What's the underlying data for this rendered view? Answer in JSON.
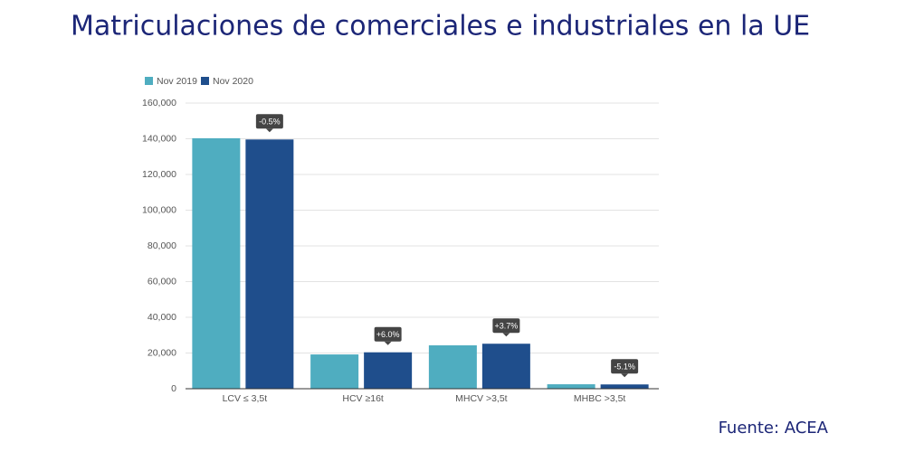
{
  "chart_data": {
    "type": "bar",
    "title": "Matriculaciones de comerciales e industriales en la UE",
    "source": "Fuente: ACEA",
    "categories": [
      "LCV ≤ 3,5t",
      "HCV ≥16t",
      "MHCV >3,5t",
      "MHBC >3,5t"
    ],
    "series": [
      {
        "name": "Nov 2019",
        "color": "#4fadc0",
        "values": [
          140300,
          19200,
          24300,
          2500
        ]
      },
      {
        "name": "Nov 2020",
        "color": "#1f4e8c",
        "values": [
          139600,
          20400,
          25200,
          2400
        ]
      }
    ],
    "annotations": [
      "-0.5%",
      "+6.0%",
      "+3.7%",
      "-5.1%"
    ],
    "ylim": [
      0,
      160000
    ],
    "yticks": [
      0,
      {
        "value": 20000,
        "label": "20,000"
      },
      {
        "value": 40000,
        "label": "40,000"
      },
      {
        "value": 60000,
        "label": "60,000"
      },
      {
        "value": 80000,
        "label": "80,000"
      },
      {
        "value": 100000,
        "label": "100,000"
      },
      {
        "value": 120000,
        "label": "120,000"
      },
      {
        "value": 140000,
        "label": "140,000"
      },
      {
        "value": 160000,
        "label": "160,000"
      }
    ],
    "grid": true,
    "legend": "top-left"
  }
}
